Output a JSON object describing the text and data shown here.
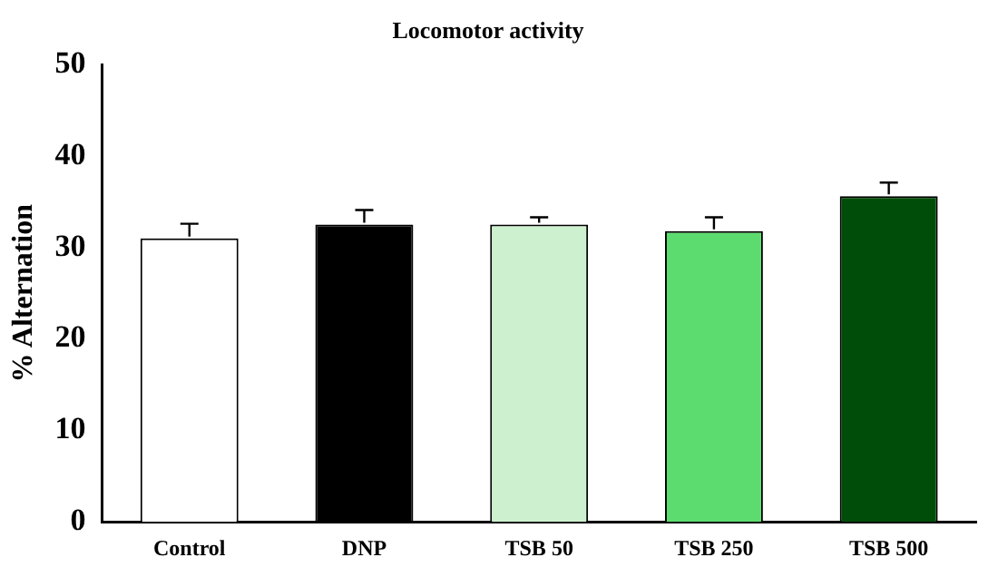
{
  "chart_data": {
    "type": "bar",
    "title": "Locomotor activity",
    "ylabel": "% Alternation",
    "categories": [
      "Control",
      "DNP",
      "TSB 50",
      "TSB 250",
      "TSB 500"
    ],
    "values": [
      31.0,
      32.5,
      32.5,
      31.8,
      35.6
    ],
    "errors": [
      1.6,
      1.6,
      0.8,
      1.5,
      1.5
    ],
    "colors": [
      "#ffffff",
      "#000000",
      "#cdf1cf",
      "#5cdc6e",
      "#004d09"
    ],
    "ylim": [
      0,
      50
    ],
    "yticks": [
      0,
      10,
      20,
      30,
      40,
      50
    ],
    "grid": false,
    "legend": false
  }
}
